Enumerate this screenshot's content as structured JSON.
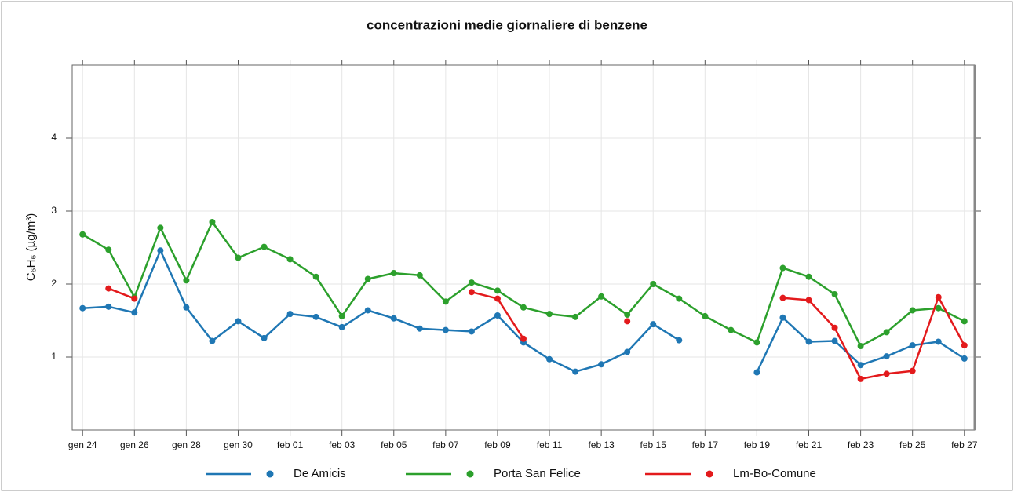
{
  "chart_data": {
    "type": "line",
    "title": "concentrazioni medie giornaliere di benzene",
    "y_label": "C₆H₆ (µg/m³)",
    "categories": [
      "gen 24",
      null,
      "gen 26",
      null,
      "gen 28",
      null,
      "gen 30",
      null,
      "feb 01",
      null,
      "feb 03",
      null,
      "feb 05",
      null,
      "feb 07",
      null,
      "feb 09",
      null,
      "feb 11",
      null,
      "feb 13",
      null,
      "feb 15",
      null,
      "feb 17",
      null,
      "feb 19",
      null,
      "feb 21",
      null,
      "feb 23",
      null,
      "feb 25",
      null,
      "feb 27"
    ],
    "series": [
      {
        "name": "De Amicis",
        "color": "#1f77b4",
        "values": [
          1.67,
          1.69,
          1.61,
          2.46,
          1.68,
          1.22,
          1.49,
          1.26,
          1.59,
          1.55,
          1.41,
          1.64,
          1.53,
          1.39,
          1.37,
          1.35,
          1.57,
          1.2,
          0.97,
          0.8,
          0.9,
          1.07,
          1.45,
          1.23,
          null,
          null,
          0.79,
          1.54,
          1.21,
          1.22,
          0.89,
          1.01,
          1.16,
          1.21,
          0.98
        ]
      },
      {
        "name": "Porta San Felice",
        "color": "#2ca02c",
        "values": [
          2.68,
          2.47,
          1.82,
          2.77,
          2.05,
          2.85,
          2.36,
          2.51,
          2.34,
          2.1,
          1.56,
          2.07,
          2.15,
          2.12,
          1.76,
          2.02,
          1.91,
          1.68,
          1.59,
          1.55,
          1.83,
          1.58,
          2.0,
          1.8,
          1.56,
          1.37,
          1.2,
          2.22,
          2.1,
          1.86,
          1.15,
          1.34,
          1.64,
          1.67,
          1.49
        ]
      },
      {
        "name": "Lm-Bo-Comune",
        "color": "#e31a1c",
        "values": [
          null,
          1.94,
          1.8,
          null,
          null,
          null,
          null,
          null,
          null,
          null,
          null,
          null,
          null,
          null,
          null,
          1.89,
          1.8,
          1.25,
          null,
          null,
          null,
          1.49,
          null,
          null,
          null,
          null,
          null,
          1.81,
          1.78,
          1.4,
          0.7,
          0.77,
          0.81,
          1.82,
          1.16
        ]
      }
    ],
    "ylim": [
      0,
      5
    ],
    "yticks": [
      1,
      2,
      3,
      4
    ],
    "grid": true
  }
}
